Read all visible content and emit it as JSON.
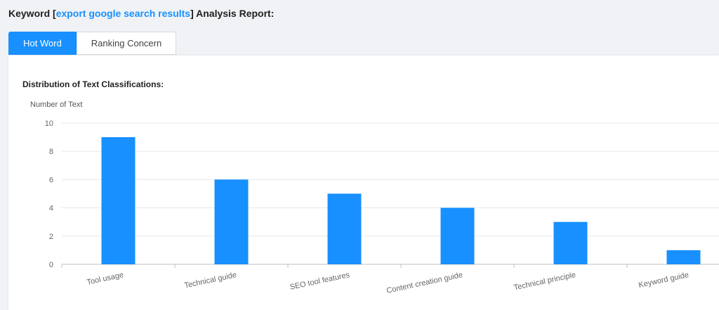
{
  "header": {
    "prefix": "Keyword [",
    "keyword": "export google search results",
    "suffix": "] Analysis Report:"
  },
  "tabs": [
    {
      "label": "Hot Word",
      "active": true
    },
    {
      "label": "Ranking Concern",
      "active": false
    }
  ],
  "colors": {
    "accent": "#1890ff",
    "bar": "#1890ff"
  },
  "chart_data": {
    "type": "bar",
    "title": "Distribution of Text Classifications:",
    "xlabel": "",
    "ylabel": "Number of Text",
    "categories": [
      "Tool usage",
      "Technical guide",
      "SEO tool features",
      "Content creation guide",
      "Technical principle",
      "Keyword guide"
    ],
    "values": [
      9,
      6,
      5,
      4,
      3,
      1
    ],
    "ylim": [
      0,
      10
    ],
    "yticks": [
      0,
      2,
      4,
      6,
      8,
      10
    ],
    "grid": true
  }
}
